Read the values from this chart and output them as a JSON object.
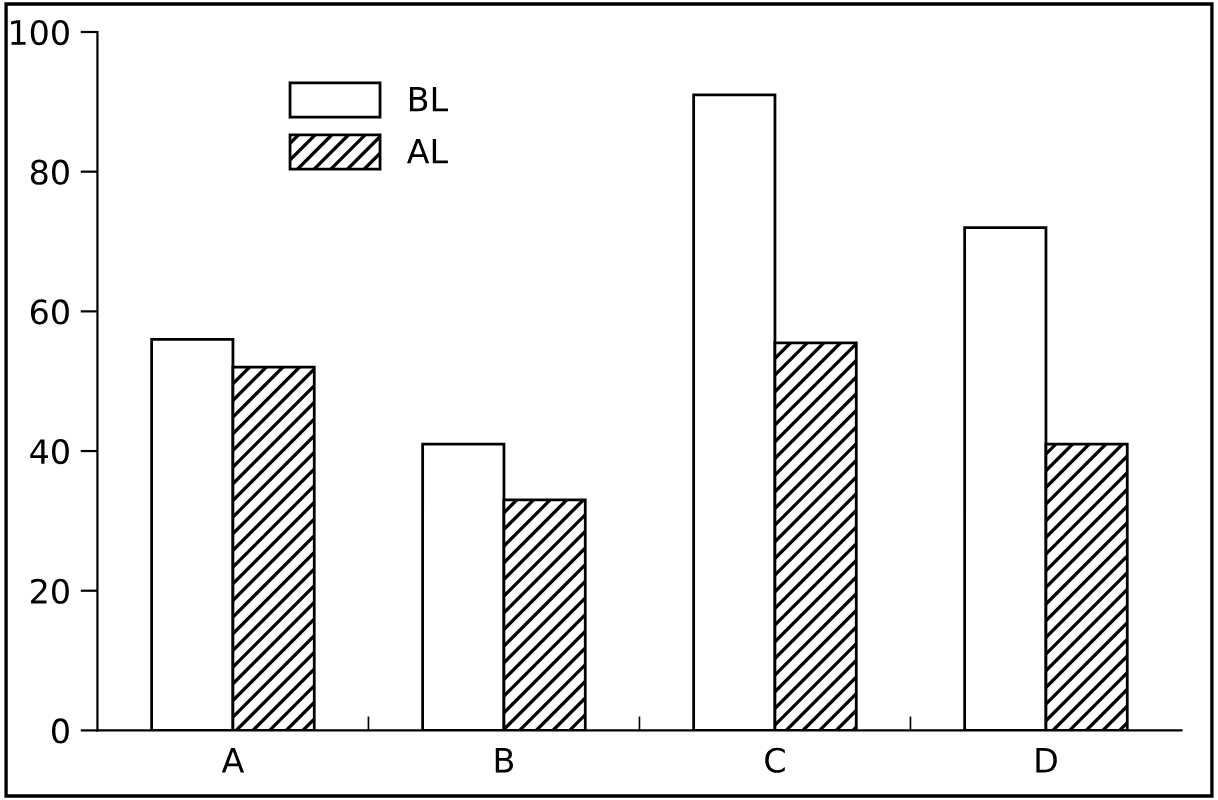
{
  "chart_data": {
    "type": "bar",
    "categories": [
      "A",
      "B",
      "C",
      "D"
    ],
    "series": [
      {
        "name": "BL",
        "color": "#ffffff",
        "values": [
          56,
          41,
          91,
          72
        ]
      },
      {
        "name": "AL",
        "color": "#000000",
        "values": [
          52,
          33,
          55.5,
          41
        ]
      }
    ],
    "ylim": [
      0,
      100
    ],
    "yticks": [
      0,
      20,
      40,
      60,
      80,
      100
    ],
    "grid": false,
    "legend": "top left"
  }
}
